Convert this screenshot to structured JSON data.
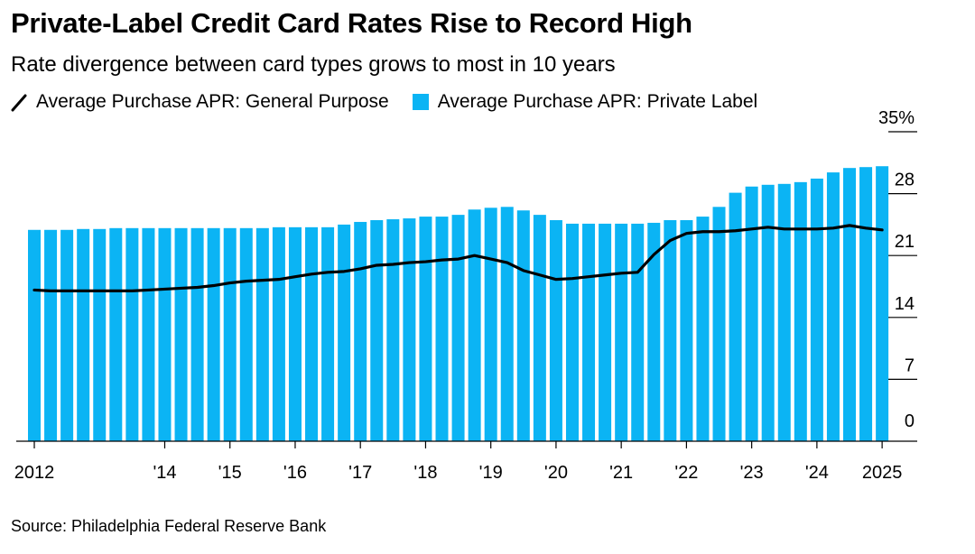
{
  "header": {
    "title": "Private-Label Credit Card Rates Rise to Record High",
    "subtitle": "Rate divergence between card types grows to most in 10 years"
  },
  "legend": {
    "general": "Average Purchase APR: General Purpose",
    "private": "Average Purchase APR: Private Label"
  },
  "footer": {
    "source": "Source: Philadelphia Federal Reserve Bank"
  },
  "colors": {
    "bar": "#0bb4f4",
    "line": "#000000",
    "axis": "#000000"
  },
  "chart_data": {
    "type": "bar",
    "x_start": "2012-Q1",
    "x_end": "2025-Q1",
    "x": [
      "2012-Q1",
      "2012-Q2",
      "2012-Q3",
      "2012-Q4",
      "2013-Q1",
      "2013-Q2",
      "2013-Q3",
      "2013-Q4",
      "2014-Q1",
      "2014-Q2",
      "2014-Q3",
      "2014-Q4",
      "2015-Q1",
      "2015-Q2",
      "2015-Q3",
      "2015-Q4",
      "2016-Q1",
      "2016-Q2",
      "2016-Q3",
      "2016-Q4",
      "2017-Q1",
      "2017-Q2",
      "2017-Q3",
      "2017-Q4",
      "2018-Q1",
      "2018-Q2",
      "2018-Q3",
      "2018-Q4",
      "2019-Q1",
      "2019-Q2",
      "2019-Q3",
      "2019-Q4",
      "2020-Q1",
      "2020-Q2",
      "2020-Q3",
      "2020-Q4",
      "2021-Q1",
      "2021-Q2",
      "2021-Q3",
      "2021-Q4",
      "2022-Q1",
      "2022-Q2",
      "2022-Q3",
      "2022-Q4",
      "2023-Q1",
      "2023-Q2",
      "2023-Q3",
      "2023-Q4",
      "2024-Q1",
      "2024-Q2",
      "2024-Q3",
      "2024-Q4",
      "2025-Q1"
    ],
    "series": [
      {
        "name": "Average Purchase APR: Private Label",
        "type": "bar",
        "values": [
          23.9,
          23.9,
          23.9,
          24.0,
          24.0,
          24.1,
          24.1,
          24.1,
          24.1,
          24.1,
          24.1,
          24.1,
          24.1,
          24.1,
          24.1,
          24.2,
          24.2,
          24.2,
          24.2,
          24.5,
          24.8,
          25.0,
          25.1,
          25.2,
          25.4,
          25.4,
          25.6,
          26.2,
          26.4,
          26.5,
          26.1,
          25.6,
          25.0,
          24.6,
          24.6,
          24.6,
          24.6,
          24.6,
          24.7,
          25.0,
          25.0,
          25.4,
          26.5,
          28.1,
          28.8,
          29.0,
          29.1,
          29.3,
          29.7,
          30.4,
          30.9,
          31.0,
          31.1
        ]
      },
      {
        "name": "Average Purchase APR: General Purpose",
        "type": "line",
        "values": [
          17.1,
          17.0,
          17.0,
          17.0,
          17.0,
          17.0,
          17.0,
          17.1,
          17.2,
          17.3,
          17.4,
          17.6,
          17.9,
          18.1,
          18.2,
          18.3,
          18.6,
          18.9,
          19.1,
          19.2,
          19.5,
          19.9,
          20.0,
          20.2,
          20.3,
          20.5,
          20.6,
          21.0,
          20.6,
          20.2,
          19.3,
          18.8,
          18.3,
          18.4,
          18.6,
          18.8,
          19.0,
          19.1,
          21.1,
          22.7,
          23.5,
          23.7,
          23.7,
          23.8,
          24.0,
          24.2,
          24.0,
          24.0,
          24.0,
          24.1,
          24.4,
          24.1,
          23.9
        ]
      }
    ],
    "ylim": [
      0,
      35
    ],
    "y_ticks": [
      0,
      7,
      14,
      21,
      28,
      35
    ],
    "y_tick_labels": [
      "0",
      "7",
      "14",
      "21",
      "28",
      "35%"
    ],
    "x_tick_positions": [
      "2012-Q1",
      "2014-Q1",
      "2015-Q1",
      "2016-Q1",
      "2017-Q1",
      "2018-Q1",
      "2019-Q1",
      "2020-Q1",
      "2021-Q1",
      "2022-Q1",
      "2023-Q1",
      "2024-Q1",
      "2025-Q1"
    ],
    "x_tick_labels": [
      "2012",
      "'14",
      "'15",
      "'16",
      "'17",
      "'18",
      "'19",
      "'20",
      "'21",
      "'22",
      "'23",
      "'24",
      "2025"
    ],
    "y_axis_side": "right",
    "legend_position": "top-left",
    "grid": false
  }
}
